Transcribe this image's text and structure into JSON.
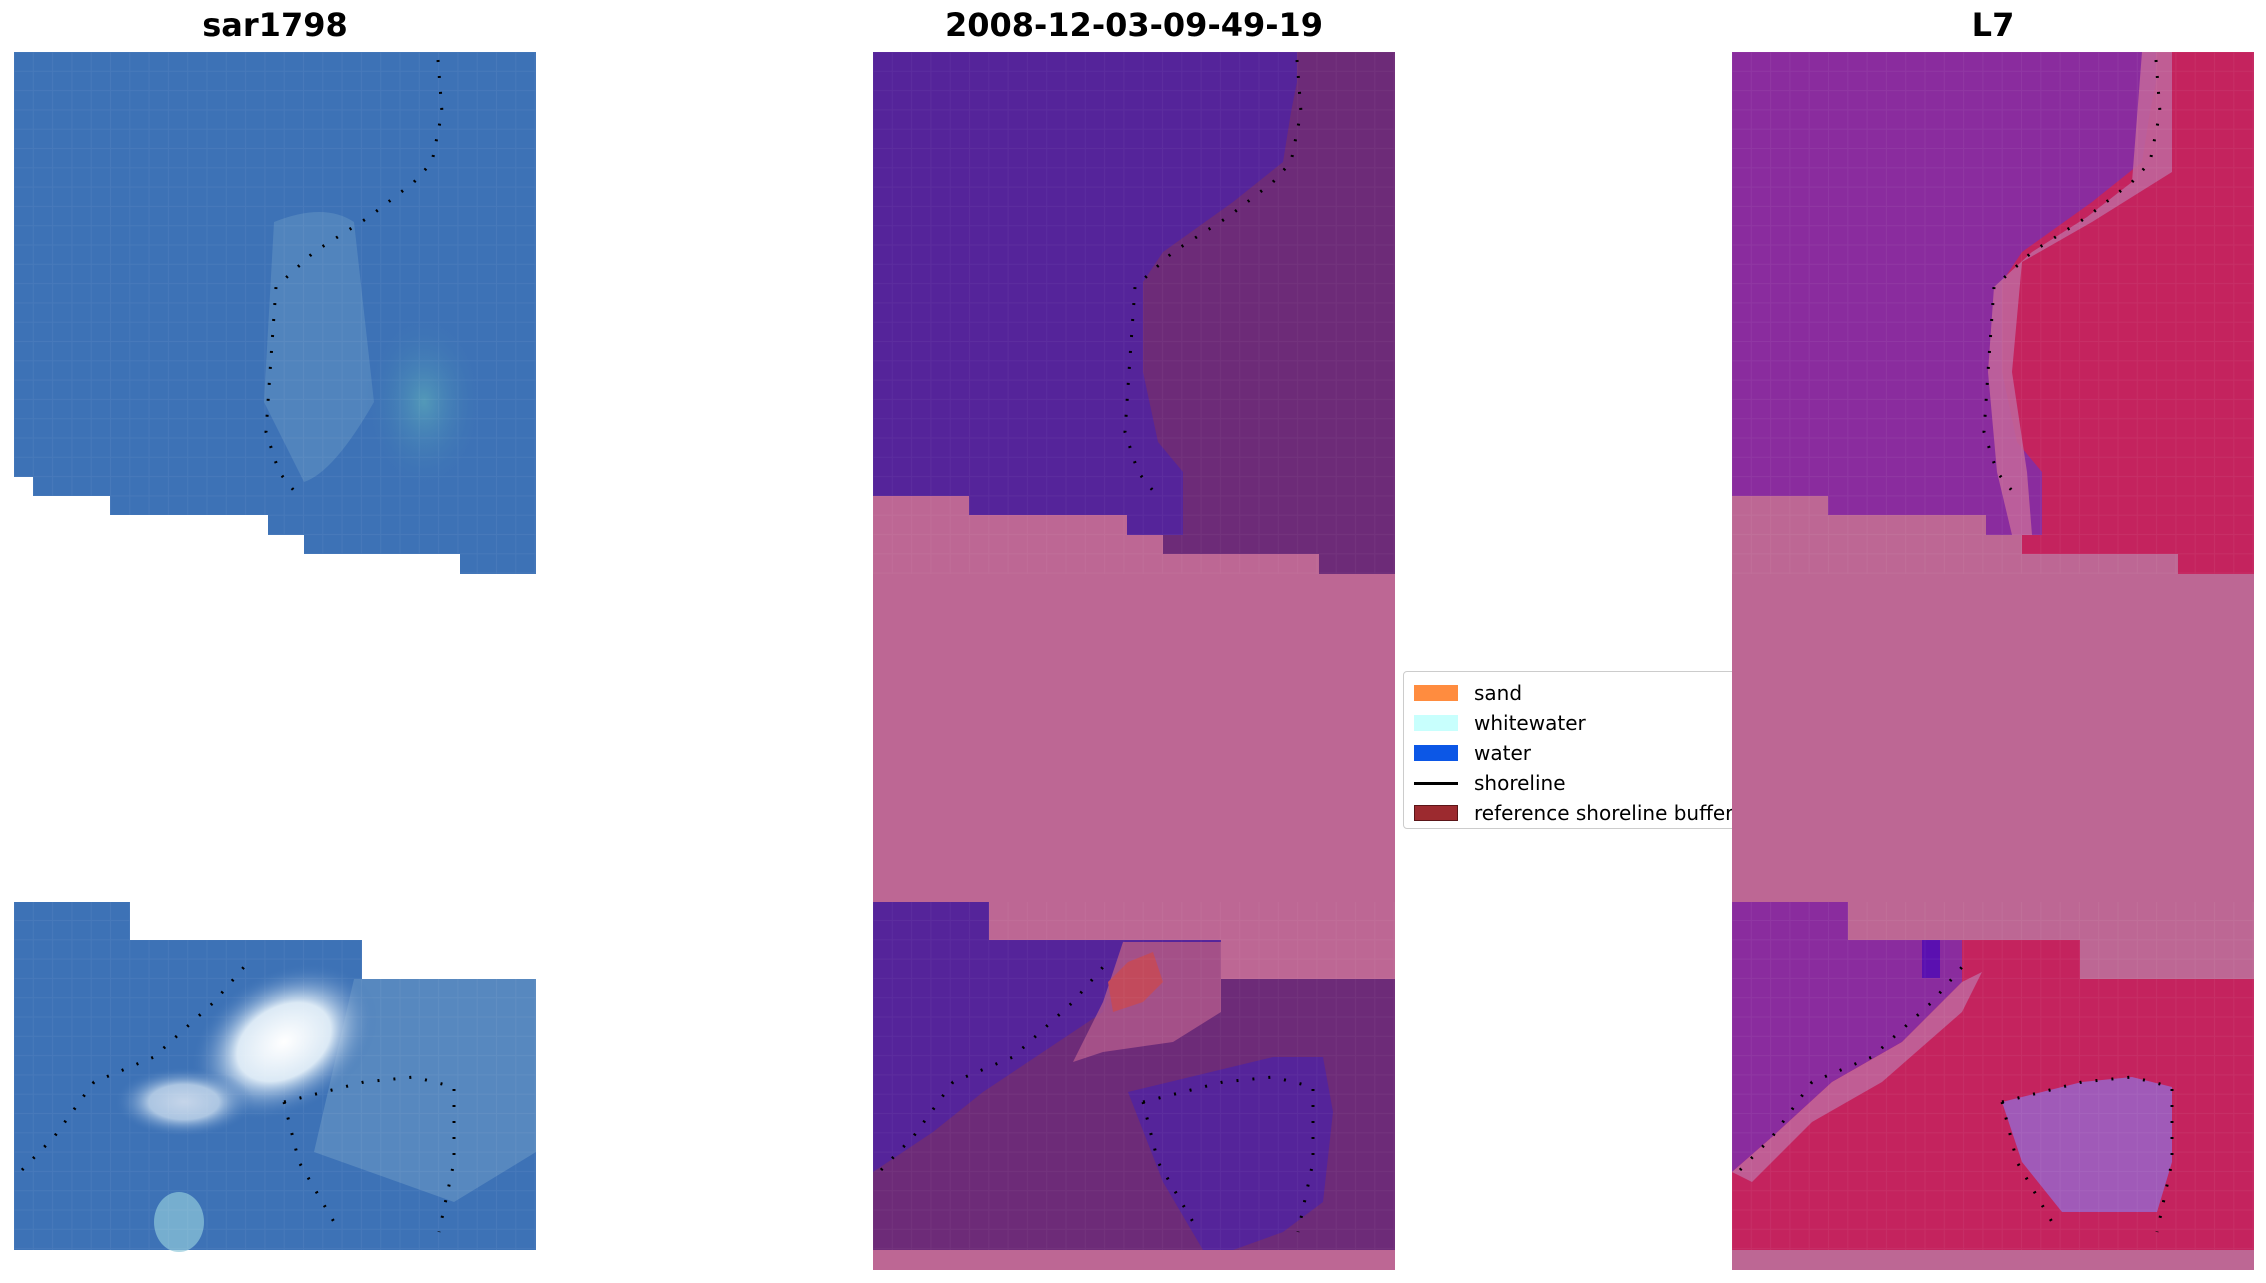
{
  "panels": [
    {
      "title": "sar1798"
    },
    {
      "title": "2008-12-03-09-49-19"
    },
    {
      "title": "L7"
    }
  ],
  "legend": {
    "items": [
      {
        "label": "sand",
        "color": "#ff8c3f",
        "kind": "patch"
      },
      {
        "label": "whitewater",
        "color": "#c8fffd",
        "kind": "patch"
      },
      {
        "label": "water",
        "color": "#0c57e6",
        "kind": "patch"
      },
      {
        "label": "shoreline",
        "color": "#000000",
        "kind": "line"
      },
      {
        "label": "reference shoreline buffer",
        "color": "#9c2a2f",
        "kind": "patch"
      }
    ]
  },
  "colors": {
    "rgb_water": "#3d72b6",
    "water_class": "#55249a",
    "land_class": "#6d2b78",
    "nodata_mask": "#bd6794",
    "index_low": "#7a22a3",
    "index_high": "#c21d58"
  }
}
